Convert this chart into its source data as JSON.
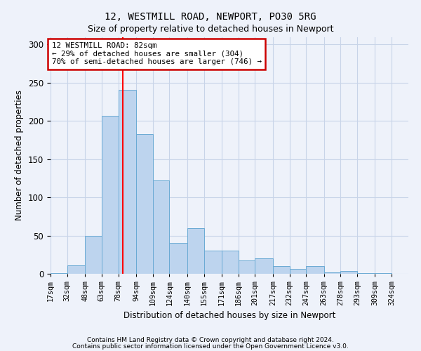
{
  "title1": "12, WESTMILL ROAD, NEWPORT, PO30 5RG",
  "title2": "Size of property relative to detached houses in Newport",
  "xlabel": "Distribution of detached houses by size in Newport",
  "ylabel": "Number of detached properties",
  "footer1": "Contains HM Land Registry data © Crown copyright and database right 2024.",
  "footer2": "Contains public sector information licensed under the Open Government Licence v3.0.",
  "annotation_line1": "12 WESTMILL ROAD: 82sqm",
  "annotation_line2": "← 29% of detached houses are smaller (304)",
  "annotation_line3": "70% of semi-detached houses are larger (746) →",
  "bar_edges": [
    17,
    32,
    48,
    63,
    78,
    94,
    109,
    124,
    140,
    155,
    171,
    186,
    201,
    217,
    232,
    247,
    263,
    278,
    293,
    309,
    324
  ],
  "bar_heights": [
    1,
    11,
    50,
    207,
    241,
    183,
    122,
    40,
    60,
    30,
    30,
    17,
    20,
    10,
    6,
    10,
    2,
    4,
    1,
    1
  ],
  "bar_color": "#bdd4ee",
  "bar_edge_color": "#6aaad4",
  "red_line_x": 82,
  "annotation_box_color": "#ffffff",
  "annotation_box_edge_color": "#cc0000",
  "grid_color": "#c8d4e8",
  "background_color": "#eef2fa",
  "ylim": [
    0,
    310
  ],
  "xlim": [
    17,
    339
  ],
  "yticks": [
    0,
    50,
    100,
    150,
    200,
    250,
    300
  ]
}
